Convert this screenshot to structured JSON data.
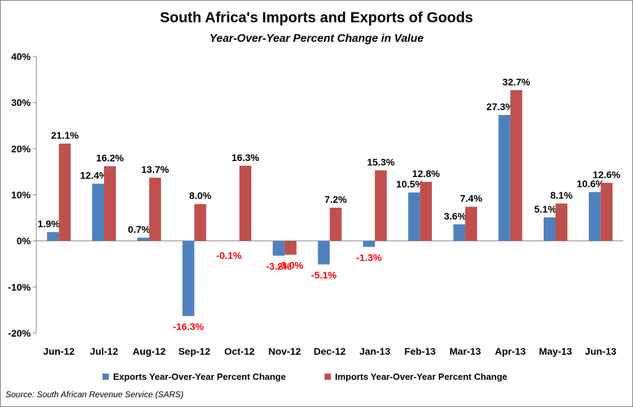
{
  "chart_data": {
    "type": "bar",
    "title": "South Africa's Imports and Exports of Goods",
    "subtitle": "Year-Over-Year  Percent Change in Value",
    "categories": [
      "Jun-12",
      "Jul-12",
      "Aug-12",
      "Sep-12",
      "Oct-12",
      "Nov-12",
      "Dec-12",
      "Jan-13",
      "Feb-13",
      "Mar-13",
      "Apr-13",
      "May-13",
      "Jun-13"
    ],
    "series": [
      {
        "name": "Exports Year-Over-Year Percent Change",
        "color": "#4f81bd",
        "values": [
          1.9,
          12.4,
          0.7,
          -16.3,
          null,
          -3.2,
          -5.1,
          -1.3,
          10.5,
          3.6,
          27.3,
          5.1,
          10.6
        ],
        "labels": [
          "1.9%",
          "12.4%",
          "0.7%",
          "-16.3%",
          "",
          "-3.2%",
          "-5.1%",
          "-1.3%",
          "10.5%",
          "3.6%",
          "27.3%",
          "5.1%",
          "10.6%"
        ]
      },
      {
        "name": "Imports Year-Over-Year Percent Change",
        "color": "#c0504d",
        "values": [
          21.1,
          16.2,
          13.7,
          8.0,
          16.3,
          -3.0,
          7.2,
          15.3,
          12.8,
          7.4,
          32.7,
          8.1,
          12.6
        ],
        "labels": [
          "21.1%",
          "16.2%",
          "13.7%",
          "8.0%",
          "16.3%",
          "-3.0%",
          "7.2%",
          "15.3%",
          "12.8%",
          "7.4%",
          "32.7%",
          "8.1%",
          "12.6%"
        ]
      }
    ],
    "extra_labels": [
      {
        "category_index": 4,
        "text": "-0.1%"
      }
    ],
    "negative_label_color": "#ff0000",
    "ylim": [
      -20,
      40
    ],
    "yticks": [
      -20,
      -10,
      0,
      10,
      20,
      30,
      40
    ],
    "ytick_labels": [
      "-20%",
      "-10%",
      "0%",
      "10%",
      "20%",
      "30%",
      "40%"
    ],
    "xlabel": "",
    "ylabel": "",
    "grid": false,
    "legend_position": "bottom"
  },
  "source_text": "Source: South African Revenue Service (SARS)"
}
